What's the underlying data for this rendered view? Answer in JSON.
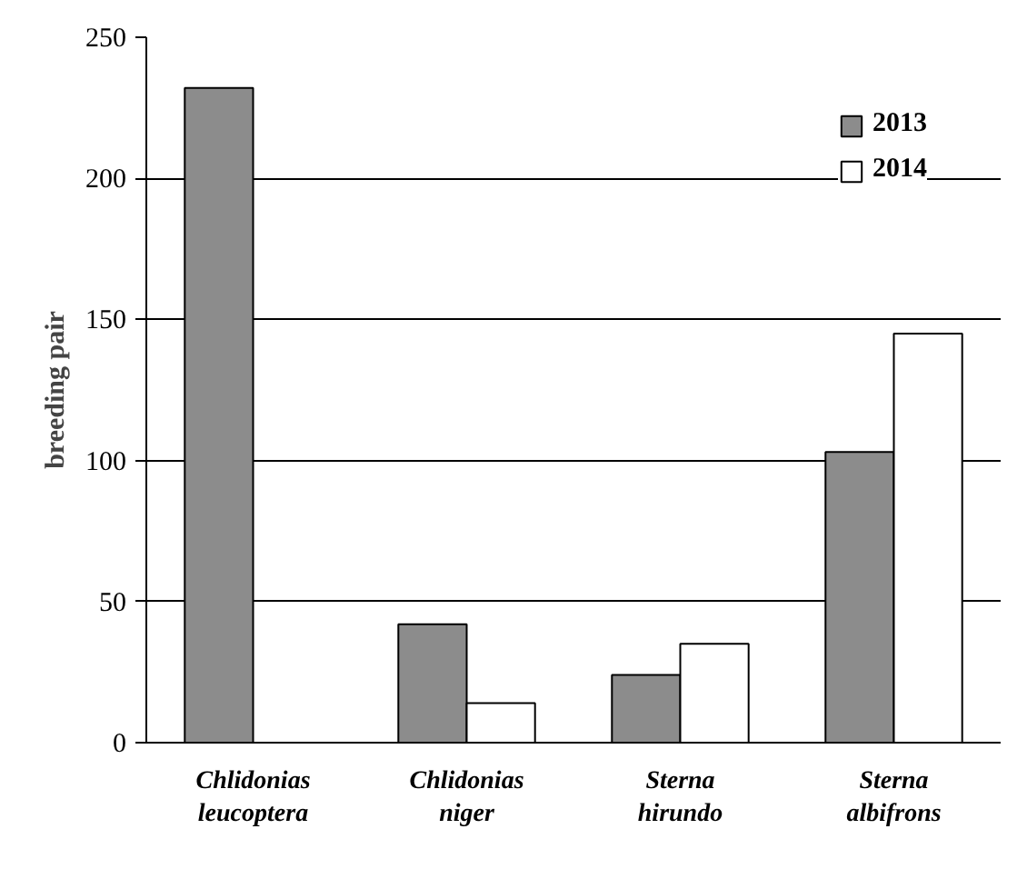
{
  "chart_data": {
    "type": "bar",
    "ylabel": "breeding pair",
    "categories": [
      "Chlidonias\nleucoptera",
      "Chlidonias\nniger",
      "Sterna\nhirundo",
      "Sterna\nalbifrons"
    ],
    "series": [
      {
        "name": "2013",
        "color": "#8c8c8c",
        "values": [
          232,
          42,
          24,
          103
        ]
      },
      {
        "name": "2014",
        "color": "#ffffff",
        "values": [
          null,
          14,
          35,
          145
        ]
      }
    ],
    "ylim": [
      0,
      250
    ],
    "yticks": [
      0,
      50,
      100,
      150,
      200,
      250
    ],
    "grid": "y",
    "legend": "top right"
  }
}
